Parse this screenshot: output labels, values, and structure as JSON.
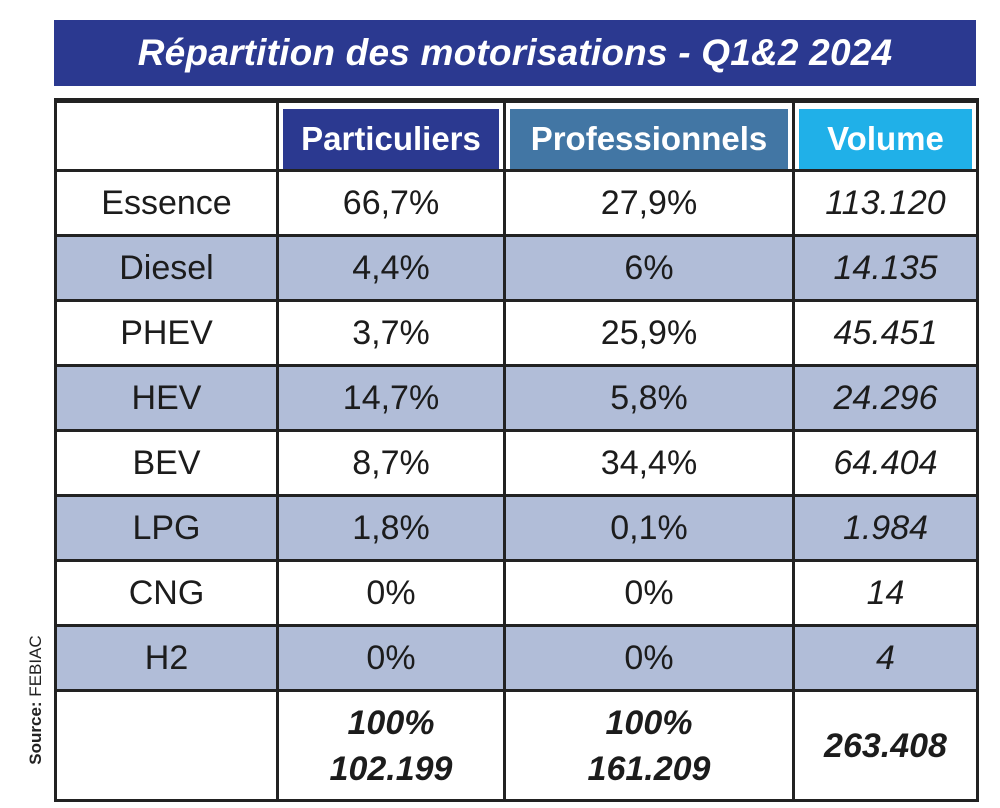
{
  "title": "Répartition des motorisations - Q1&2 2024",
  "source": {
    "label": "Source:",
    "name": "FEBIAC"
  },
  "colors": {
    "title_bg": "#2b3990",
    "particuliers_header": "#2b3990",
    "professionnels_header": "#4276a4",
    "volume_header": "#20b0e8",
    "alt_row": "#b1bdd8"
  },
  "chart_data": {
    "type": "table",
    "title": "Répartition des motorisations - Q1&2 2024",
    "columns": [
      "",
      "Particuliers",
      "Professionnels",
      "Volume"
    ],
    "rows": [
      {
        "label": "Essence",
        "particuliers": "66,7%",
        "professionnels": "27,9%",
        "volume": "113.120"
      },
      {
        "label": "Diesel",
        "particuliers": "4,4%",
        "professionnels": "6%",
        "volume": "14.135"
      },
      {
        "label": "PHEV",
        "particuliers": "3,7%",
        "professionnels": "25,9%",
        "volume": "45.451"
      },
      {
        "label": "HEV",
        "particuliers": "14,7%",
        "professionnels": "5,8%",
        "volume": "24.296"
      },
      {
        "label": "BEV",
        "particuliers": "8,7%",
        "professionnels": "34,4%",
        "volume": "64.404"
      },
      {
        "label": "LPG",
        "particuliers": "1,8%",
        "professionnels": "0,1%",
        "volume": "1.984"
      },
      {
        "label": "CNG",
        "particuliers": "0%",
        "professionnels": "0%",
        "volume": "14"
      },
      {
        "label": "H2",
        "particuliers": "0%",
        "professionnels": "0%",
        "volume": "4"
      }
    ],
    "total": {
      "particuliers_pct": "100%",
      "particuliers_count": "102.199",
      "professionnels_pct": "100%",
      "professionnels_count": "161.209",
      "volume": "263.408"
    }
  }
}
